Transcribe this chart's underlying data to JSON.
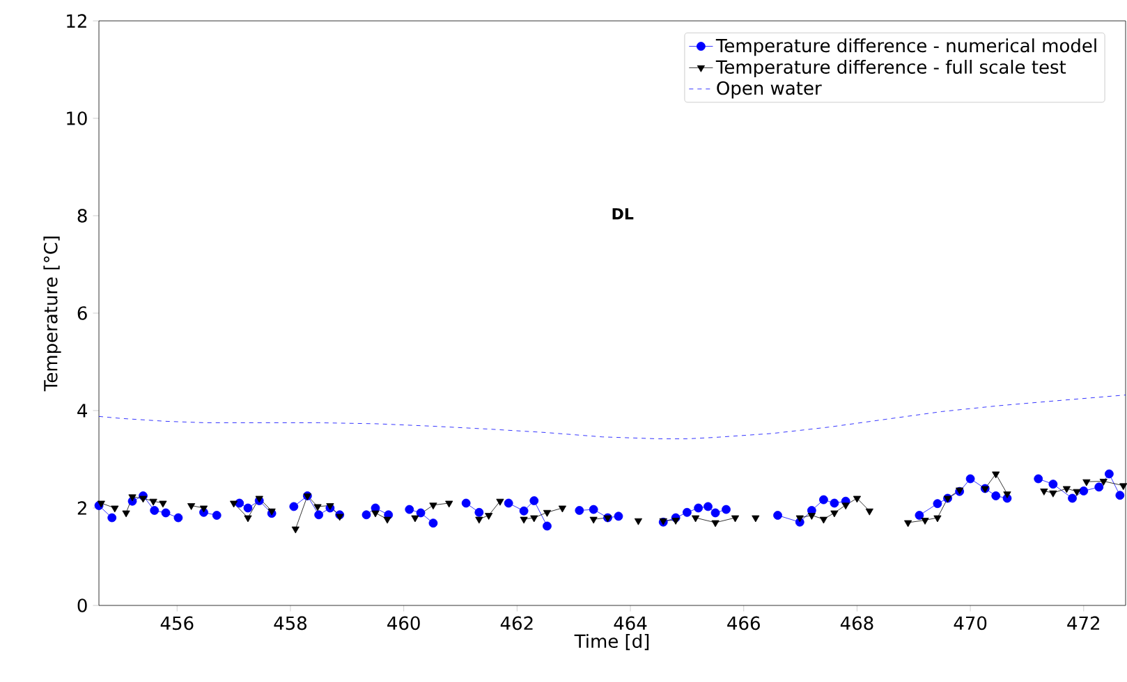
{
  "chart_data": {
    "type": "line",
    "xlabel": "Time [d]",
    "ylabel": "Temperature [°C]",
    "xlim": [
      454.62,
      472.74
    ],
    "ylim": [
      0,
      12
    ],
    "xticks": [
      456,
      458,
      460,
      462,
      464,
      466,
      468,
      470,
      472
    ],
    "yticks": [
      0,
      2,
      4,
      6,
      8,
      10,
      12
    ],
    "grid": false,
    "legend": "top right",
    "annotations": [
      "DL"
    ],
    "series": [
      {
        "name": "Temperature difference - numerical model",
        "color": "#0000ff",
        "marker": "circle",
        "line_style": "solid",
        "x": [
          454.62,
          454.85,
          455.0,
          455.21,
          455.4,
          455.6,
          455.8,
          456.02,
          456.2,
          456.47,
          456.7,
          456.9,
          457.1,
          457.25,
          457.45,
          457.67,
          457.9,
          458.06,
          458.3,
          458.5,
          458.7,
          458.87,
          459.1,
          459.34,
          459.5,
          459.73,
          459.9,
          460.1,
          460.3,
          460.52,
          460.9,
          461.1,
          461.33,
          461.6,
          461.85,
          462.12,
          462.3,
          462.53,
          462.9,
          463.1,
          463.35,
          463.6,
          463.79,
          464.2,
          464.58,
          464.8,
          465.0,
          465.2,
          465.37,
          465.5,
          465.69,
          466.3,
          466.6,
          466.99,
          467.2,
          467.41,
          467.6,
          467.8,
          468.6,
          469.1,
          469.42,
          469.6,
          469.81,
          470.0,
          470.26,
          470.45,
          470.65,
          471.0,
          471.2,
          471.46,
          471.8,
          472.0,
          472.27,
          472.45,
          472.64
        ],
        "values": [
          2.05,
          1.8,
          null,
          2.14,
          2.25,
          1.95,
          1.9,
          1.8,
          null,
          1.91,
          1.85,
          null,
          2.1,
          2.0,
          2.15,
          1.89,
          null,
          2.03,
          2.25,
          1.86,
          2.0,
          1.86,
          null,
          1.86,
          2.0,
          1.86,
          null,
          1.97,
          1.9,
          1.69,
          null,
          2.1,
          1.91,
          null,
          2.1,
          1.94,
          2.15,
          1.63,
          null,
          1.95,
          1.97,
          1.8,
          1.83,
          null,
          1.71,
          1.8,
          1.91,
          2.0,
          2.03,
          1.9,
          1.97,
          null,
          1.85,
          1.71,
          1.95,
          2.17,
          2.1,
          2.14,
          null,
          1.85,
          2.09,
          2.2,
          2.34,
          2.6,
          2.4,
          2.25,
          2.2,
          null,
          2.6,
          2.49,
          2.2,
          2.35,
          2.43,
          2.7,
          2.26
        ]
      },
      {
        "name": "Temperature difference - full scale test",
        "color": "#000000",
        "marker": "triangle",
        "line_style": "solid",
        "x": [
          454.66,
          454.9,
          455.05,
          455.1,
          455.21,
          455.4,
          455.58,
          455.75,
          456.0,
          456.25,
          456.47,
          456.7,
          457.0,
          457.25,
          457.45,
          457.67,
          457.85,
          458.09,
          458.3,
          458.48,
          458.7,
          458.87,
          459.2,
          459.5,
          459.71,
          460.0,
          460.2,
          460.52,
          460.8,
          461.0,
          461.33,
          461.5,
          461.7,
          461.9,
          462.12,
          462.3,
          462.53,
          462.8,
          463.1,
          463.35,
          463.6,
          463.9,
          464.14,
          464.4,
          464.58,
          464.8,
          465.1,
          465.15,
          465.5,
          465.85,
          466.0,
          466.21,
          466.6,
          466.99,
          467.2,
          467.41,
          467.6,
          467.8,
          468.0,
          468.22,
          468.6,
          468.9,
          469.2,
          469.42,
          469.6,
          469.81,
          470.0,
          470.26,
          470.45,
          470.65,
          471.1,
          471.3,
          471.46,
          471.7,
          471.88,
          472.0,
          472.05,
          472.35,
          472.7
        ],
        "values": [
          2.1,
          2.0,
          null,
          1.9,
          2.23,
          2.2,
          2.14,
          2.1,
          null,
          2.05,
          2.0,
          null,
          2.1,
          1.8,
          2.2,
          1.94,
          null,
          1.57,
          2.25,
          2.03,
          2.05,
          1.83,
          null,
          1.9,
          1.77,
          null,
          1.8,
          2.06,
          2.1,
          null,
          1.77,
          1.85,
          2.14,
          null,
          1.77,
          1.8,
          1.91,
          2.0,
          null,
          1.77,
          1.8,
          null,
          1.74,
          null,
          1.74,
          1.75,
          null,
          1.8,
          1.7,
          1.8,
          null,
          1.8,
          null,
          1.8,
          1.85,
          1.77,
          1.9,
          2.06,
          2.2,
          1.94,
          null,
          1.7,
          1.75,
          1.8,
          2.2,
          2.37,
          null,
          2.4,
          2.7,
          2.29,
          null,
          2.35,
          2.31,
          2.4,
          2.34,
          null,
          2.54,
          2.55,
          2.46
        ]
      },
      {
        "name": "Open water",
        "color": "#0000ff",
        "marker": "none",
        "line_style": "dashed",
        "x": [
          454.62,
          455.0,
          455.8,
          456.5,
          457.5,
          458.5,
          459.5,
          460.5,
          461.5,
          462.5,
          463.5,
          464.5,
          465.0,
          465.5,
          466.5,
          467.5,
          468.5,
          469.5,
          470.5,
          471.5,
          472.74
        ],
        "values": [
          3.88,
          3.84,
          3.78,
          3.75,
          3.75,
          3.75,
          3.73,
          3.68,
          3.62,
          3.55,
          3.46,
          3.42,
          3.42,
          3.45,
          3.53,
          3.66,
          3.82,
          3.98,
          4.1,
          4.2,
          4.32
        ]
      }
    ]
  }
}
